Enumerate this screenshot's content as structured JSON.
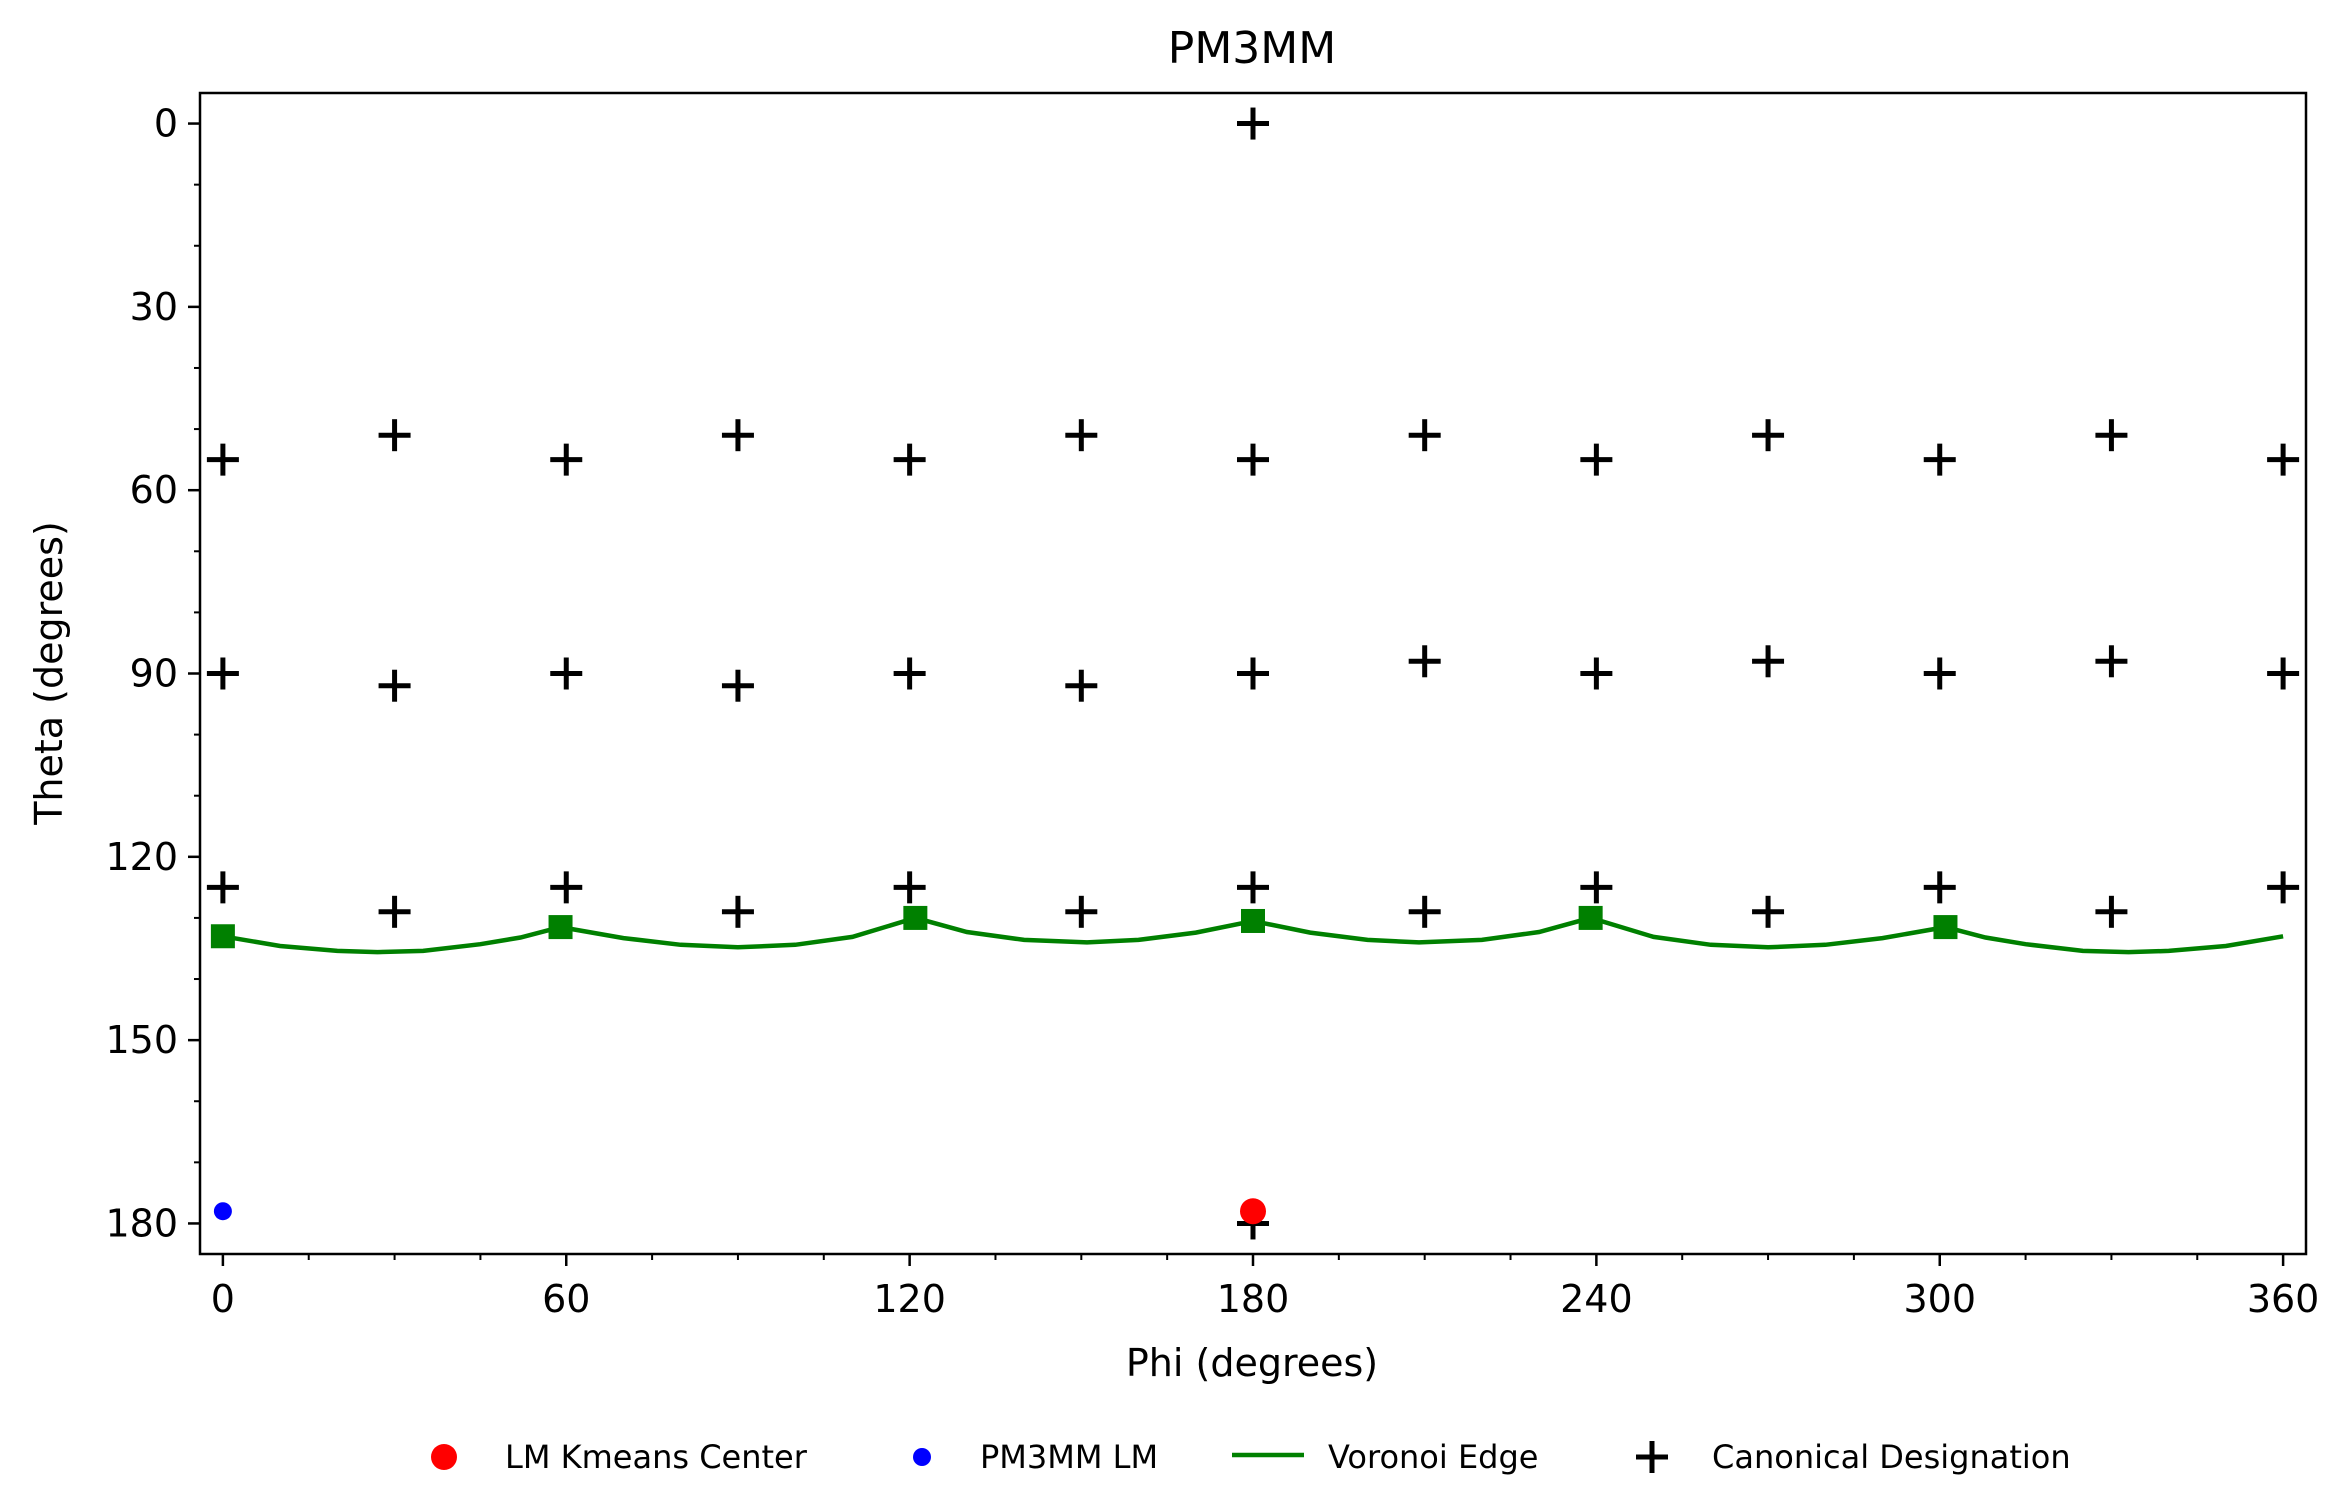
{
  "chart_data": {
    "type": "scatter",
    "title": "PM3MM",
    "xlabel": "Phi (degrees)",
    "ylabel": "Theta (degrees)",
    "xlim": [
      -4,
      364
    ],
    "ylim": [
      185,
      -5
    ],
    "y_inverted": true,
    "xticks": [
      0,
      60,
      120,
      180,
      240,
      300,
      360
    ],
    "yticks": [
      0,
      30,
      60,
      90,
      120,
      150,
      180
    ],
    "grid": false,
    "legend_position": "bottom",
    "colors": {
      "kmeans": "#ff0000",
      "lm": "#0000ff",
      "voronoi": "#008000",
      "canonical": "#000000"
    },
    "legend": [
      {
        "key": "kmeans",
        "label": "LM Kmeans Center"
      },
      {
        "key": "lm",
        "label": "PM3MM LM"
      },
      {
        "key": "voronoi",
        "label": "Voronoi Edge"
      },
      {
        "key": "canonical",
        "label": "Canonical Designation"
      }
    ],
    "series": {
      "kmeans": [
        {
          "x": 180,
          "y": 178
        }
      ],
      "lm": [
        {
          "x": 0,
          "y": 178
        }
      ],
      "canonical": [
        {
          "x": 180,
          "y": 0
        },
        {
          "x": 0,
          "y": 55
        },
        {
          "x": 30,
          "y": 51
        },
        {
          "x": 60,
          "y": 55
        },
        {
          "x": 90,
          "y": 51
        },
        {
          "x": 120,
          "y": 55
        },
        {
          "x": 150,
          "y": 51
        },
        {
          "x": 180,
          "y": 55
        },
        {
          "x": 210,
          "y": 51
        },
        {
          "x": 240,
          "y": 55
        },
        {
          "x": 270,
          "y": 51
        },
        {
          "x": 300,
          "y": 55
        },
        {
          "x": 330,
          "y": 51
        },
        {
          "x": 360,
          "y": 55
        },
        {
          "x": 0,
          "y": 90
        },
        {
          "x": 30,
          "y": 92
        },
        {
          "x": 60,
          "y": 90
        },
        {
          "x": 90,
          "y": 92
        },
        {
          "x": 120,
          "y": 90
        },
        {
          "x": 150,
          "y": 92
        },
        {
          "x": 180,
          "y": 90
        },
        {
          "x": 210,
          "y": 88
        },
        {
          "x": 240,
          "y": 90
        },
        {
          "x": 270,
          "y": 88
        },
        {
          "x": 300,
          "y": 90
        },
        {
          "x": 330,
          "y": 88
        },
        {
          "x": 360,
          "y": 90
        },
        {
          "x": 0,
          "y": 125
        },
        {
          "x": 30,
          "y": 129
        },
        {
          "x": 60,
          "y": 125
        },
        {
          "x": 90,
          "y": 129
        },
        {
          "x": 120,
          "y": 125
        },
        {
          "x": 150,
          "y": 129
        },
        {
          "x": 180,
          "y": 125
        },
        {
          "x": 210,
          "y": 129
        },
        {
          "x": 240,
          "y": 125
        },
        {
          "x": 270,
          "y": 129
        },
        {
          "x": 300,
          "y": 125
        },
        {
          "x": 330,
          "y": 129
        },
        {
          "x": 360,
          "y": 125
        },
        {
          "x": 180,
          "y": 180
        }
      ],
      "voronoi_vertices": [
        {
          "x": 0,
          "y": 133
        },
        {
          "x": 59,
          "y": 131.5
        },
        {
          "x": 121,
          "y": 130
        },
        {
          "x": 180,
          "y": 130.5
        },
        {
          "x": 239,
          "y": 130
        },
        {
          "x": 301,
          "y": 131.5
        }
      ],
      "voronoi_line": [
        {
          "x": 0,
          "y": 133
        },
        {
          "x": 10,
          "y": 134.6
        },
        {
          "x": 20,
          "y": 135.4
        },
        {
          "x": 27,
          "y": 135.6
        },
        {
          "x": 35,
          "y": 135.4
        },
        {
          "x": 45,
          "y": 134.3
        },
        {
          "x": 52,
          "y": 133.2
        },
        {
          "x": 59,
          "y": 131.5
        },
        {
          "x": 70,
          "y": 133.3
        },
        {
          "x": 80,
          "y": 134.4
        },
        {
          "x": 90,
          "y": 134.8
        },
        {
          "x": 100,
          "y": 134.4
        },
        {
          "x": 110,
          "y": 133.1
        },
        {
          "x": 121,
          "y": 130
        },
        {
          "x": 130,
          "y": 132.3
        },
        {
          "x": 140,
          "y": 133.6
        },
        {
          "x": 151,
          "y": 134
        },
        {
          "x": 160,
          "y": 133.6
        },
        {
          "x": 170,
          "y": 132.4
        },
        {
          "x": 180,
          "y": 130.5
        },
        {
          "x": 190,
          "y": 132.4
        },
        {
          "x": 200,
          "y": 133.6
        },
        {
          "x": 209,
          "y": 134
        },
        {
          "x": 220,
          "y": 133.6
        },
        {
          "x": 230,
          "y": 132.3
        },
        {
          "x": 239,
          "y": 130
        },
        {
          "x": 250,
          "y": 133.1
        },
        {
          "x": 260,
          "y": 134.4
        },
        {
          "x": 270,
          "y": 134.8
        },
        {
          "x": 280,
          "y": 134.4
        },
        {
          "x": 290,
          "y": 133.3
        },
        {
          "x": 301,
          "y": 131.5
        },
        {
          "x": 308,
          "y": 133.2
        },
        {
          "x": 315,
          "y": 134.3
        },
        {
          "x": 325,
          "y": 135.4
        },
        {
          "x": 333,
          "y": 135.6
        },
        {
          "x": 340,
          "y": 135.4
        },
        {
          "x": 350,
          "y": 134.6
        },
        {
          "x": 360,
          "y": 133
        }
      ]
    }
  }
}
